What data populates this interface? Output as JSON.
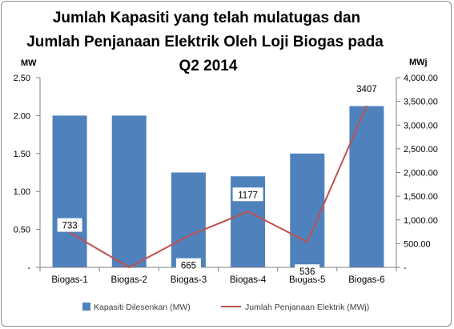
{
  "chart_data": {
    "type": "bar",
    "title_lines": [
      "Jumlah Kapasiti yang telah mulatugas dan",
      "Jumlah Penjanaan Elektrik Oleh Loji Biogas  pada",
      "Q2 2014"
    ],
    "categories": [
      "Biogas-1",
      "Biogas-2",
      "Biogas-3",
      "Biogas-4",
      "Biogas-5",
      "Biogas-6"
    ],
    "series": [
      {
        "name": "Kapasiti Dilesenkan (MW)",
        "type": "bar",
        "axis": "left",
        "color": "#4f81bd",
        "values": [
          2.0,
          2.0,
          1.25,
          1.2,
          1.5,
          2.125
        ]
      },
      {
        "name": "Jumlah Penjanaan Elektrik (MWj)",
        "type": "line",
        "axis": "right",
        "color": "#c0504d",
        "values": [
          733,
          0,
          665,
          1177,
          536,
          3407
        ],
        "data_labels": [
          "733",
          "",
          "665",
          "1177",
          "536",
          "3407"
        ]
      }
    ],
    "y_left": {
      "label": "MW",
      "range": [
        0,
        2.5
      ],
      "ticks": [
        0,
        0.5,
        1.0,
        1.5,
        2.0,
        2.5
      ],
      "tick_labels": [
        "-",
        "0.50",
        "1.00",
        "1.50",
        "2.00",
        "2.50"
      ]
    },
    "y_right": {
      "label": "MWj",
      "range": [
        0,
        4000
      ],
      "ticks": [
        0,
        500,
        1000,
        1500,
        2000,
        2500,
        3000,
        3500,
        4000
      ],
      "tick_labels": [
        "-",
        "500.00",
        "1,000.00",
        "1,500.00",
        "2,000.00",
        "2,500.00",
        "3,000.00",
        "3,500.00",
        "4,000.00"
      ]
    },
    "grid": false,
    "legend_position": "bottom"
  }
}
